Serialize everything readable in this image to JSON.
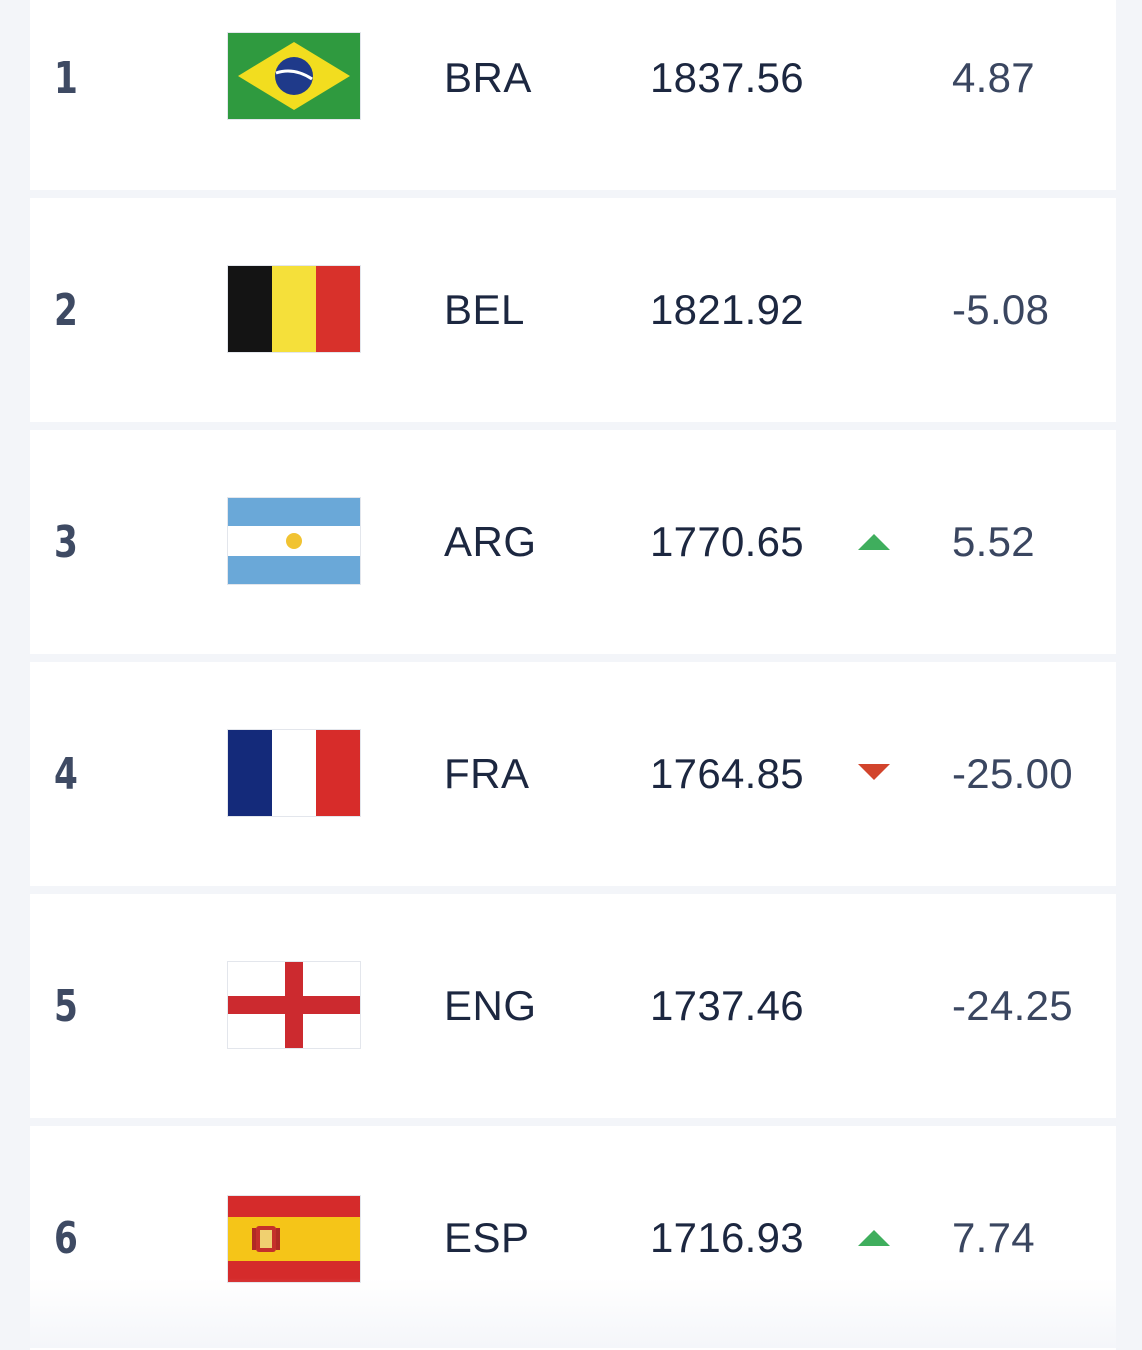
{
  "colors": {
    "trend_up": "#3fae5d",
    "trend_down": "#d2442c",
    "row_bg": "#ffffff",
    "page_bg": "#f3f5f9"
  },
  "rankings": [
    {
      "rank": "1",
      "flag_icon": "brazil-flag-icon",
      "code": "BRA",
      "points": "1837.56",
      "trend": "none",
      "change": "4.87"
    },
    {
      "rank": "2",
      "flag_icon": "belgium-flag-icon",
      "code": "BEL",
      "points": "1821.92",
      "trend": "none",
      "change": "-5.08"
    },
    {
      "rank": "3",
      "flag_icon": "argentina-flag-icon",
      "code": "ARG",
      "points": "1770.65",
      "trend": "up",
      "change": "5.52"
    },
    {
      "rank": "4",
      "flag_icon": "france-flag-icon",
      "code": "FRA",
      "points": "1764.85",
      "trend": "down",
      "change": "-25.00"
    },
    {
      "rank": "5",
      "flag_icon": "england-flag-icon",
      "code": "ENG",
      "points": "1737.46",
      "trend": "none",
      "change": "-24.25"
    },
    {
      "rank": "6",
      "flag_icon": "spain-flag-icon",
      "code": "ESP",
      "points": "1716.93",
      "trend": "up",
      "change": "7.74"
    }
  ]
}
